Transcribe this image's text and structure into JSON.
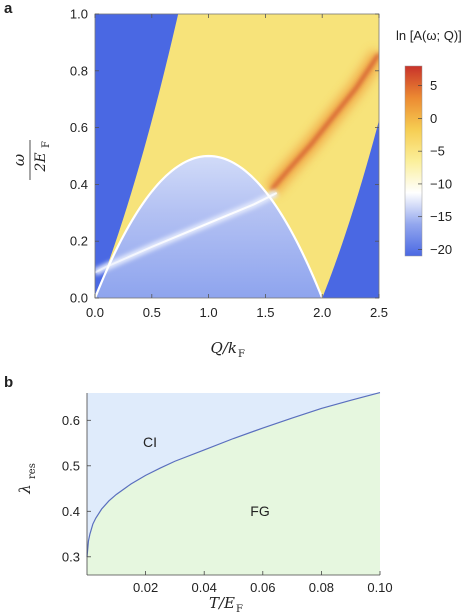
{
  "panels": {
    "a": {
      "label": "a",
      "chart_data": {
        "type": "heatmap",
        "xlim": [
          0,
          2.5
        ],
        "ylim": [
          0,
          1.0
        ],
        "x_ticks": [
          "0.0",
          "0.5",
          "1.0",
          "1.5",
          "2.0",
          "2.5"
        ],
        "y_ticks": [
          "0.0",
          "0.2",
          "0.4",
          "0.6",
          "0.8",
          "1.0"
        ],
        "xlabel_main": "Q/k",
        "xlabel_sub": "F",
        "ylabel_num": "ω",
        "ylabel_den": "2E",
        "ylabel_den_sub": "F",
        "colorbar": {
          "title": "ln [A(ω; Q)]",
          "range": [
            -21,
            8
          ],
          "ticks": [
            "5",
            "0",
            "−5",
            "−10",
            "−15",
            "−20"
          ],
          "tick_values": [
            5,
            0,
            -5,
            -10,
            -15,
            -20
          ],
          "colors": [
            "#4a68e3",
            "#93a7ee",
            "#ffffff",
            "#fbef9a",
            "#f6cd52",
            "#ec8a32",
            "#c8322a"
          ]
        },
        "regions": {
          "continuum_color": "#f7e37a",
          "outside_color": "#4a68e3",
          "bound_color": "#a7b7f1",
          "continuum_upper": "ω = Q + Q²/2 (in 2E_F units, ω ≤ 1)",
          "continuum_lower": "ω = Q²/2 − Q for Q ≥ 2"
        },
        "boundary_curve": {
          "description": "ω = Q − Q²/2 (white curve)",
          "x": [
            0.0,
            0.25,
            0.5,
            0.75,
            1.0,
            1.25,
            1.5,
            1.75,
            2.0
          ],
          "y": [
            0.0,
            0.22,
            0.375,
            0.47,
            0.5,
            0.47,
            0.375,
            0.22,
            0.0
          ]
        },
        "resonance_line_lower": {
          "x": [
            0.0,
            0.1,
            0.3,
            0.5,
            0.8,
            1.1,
            1.4,
            1.6
          ],
          "y": [
            0.09,
            0.11,
            0.145,
            0.18,
            0.23,
            0.28,
            0.33,
            0.37
          ]
        },
        "resonance_line_upper": {
          "x": [
            1.55,
            1.7,
            1.9,
            2.1,
            2.3,
            2.5
          ],
          "y": [
            0.38,
            0.45,
            0.54,
            0.64,
            0.74,
            0.86
          ]
        }
      }
    },
    "b": {
      "label": "b",
      "chart_data": {
        "type": "area",
        "xlim": [
          0,
          0.1
        ],
        "ylim": [
          0.26,
          0.66
        ],
        "x_ticks": [
          "0.02",
          "0.04",
          "0.06",
          "0.08",
          "0.10"
        ],
        "x_tick_values": [
          0.02,
          0.04,
          0.06,
          0.08,
          0.1
        ],
        "y_ticks": [
          "0.3",
          "0.4",
          "0.5",
          "0.6"
        ],
        "y_tick_values": [
          0.3,
          0.4,
          0.5,
          0.6
        ],
        "xlabel_main": "T/E",
        "xlabel_sub": "F",
        "ylabel_main": "λ",
        "ylabel_sub": "res",
        "regions": [
          {
            "name": "CI",
            "color": "#dfebfb"
          },
          {
            "name": "FG",
            "color": "#e6f7df"
          }
        ],
        "series": [
          {
            "x": [
              0.0,
              0.0005,
              0.001,
              0.002,
              0.003,
              0.005,
              0.0075,
              0.01,
              0.015,
              0.02,
              0.025,
              0.03,
              0.04,
              0.05,
              0.06,
              0.07,
              0.08,
              0.09,
              0.1
            ],
            "y": [
              0.3,
              0.335,
              0.35,
              0.372,
              0.385,
              0.405,
              0.423,
              0.437,
              0.46,
              0.479,
              0.495,
              0.51,
              0.535,
              0.56,
              0.583,
              0.605,
              0.626,
              0.644,
              0.661
            ]
          }
        ]
      }
    }
  }
}
